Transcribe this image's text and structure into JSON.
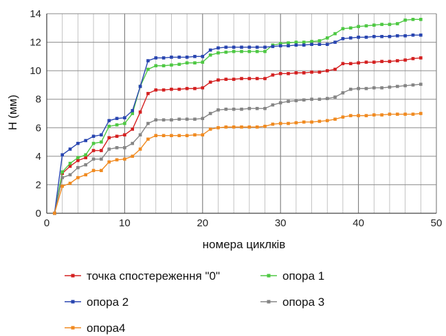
{
  "chart_data": {
    "type": "line",
    "xlabel": "номера циклків",
    "ylabel": "H (мм)",
    "xlim": [
      0,
      50
    ],
    "ylim": [
      0,
      14
    ],
    "x_ticks": [
      0,
      10,
      20,
      30,
      40,
      50
    ],
    "y_ticks": [
      0,
      2,
      4,
      6,
      8,
      10,
      12,
      14
    ],
    "grid": true,
    "legend_position": "bottom",
    "x": [
      1,
      2,
      3,
      4,
      5,
      6,
      7,
      8,
      9,
      10,
      11,
      12,
      13,
      14,
      15,
      16,
      17,
      18,
      19,
      20,
      21,
      22,
      23,
      24,
      25,
      26,
      27,
      28,
      29,
      30,
      31,
      32,
      33,
      34,
      35,
      36,
      37,
      38,
      39,
      40,
      41,
      42,
      43,
      44,
      45,
      46,
      47,
      48
    ],
    "series": [
      {
        "name": "точка спостереження \"0\"",
        "color": "#d42020",
        "values": [
          0,
          2.8,
          3.3,
          3.7,
          3.9,
          4.4,
          4.4,
          5.3,
          5.4,
          5.5,
          5.9,
          7.1,
          8.4,
          8.65,
          8.65,
          8.7,
          8.7,
          8.75,
          8.75,
          8.8,
          9.2,
          9.35,
          9.4,
          9.4,
          9.45,
          9.45,
          9.45,
          9.45,
          9.7,
          9.8,
          9.8,
          9.85,
          9.85,
          9.9,
          9.9,
          10.0,
          10.1,
          10.5,
          10.5,
          10.55,
          10.6,
          10.6,
          10.65,
          10.65,
          10.7,
          10.75,
          10.85,
          10.9
        ]
      },
      {
        "name": "опора 1",
        "color": "#4ec843",
        "values": [
          0,
          2.9,
          3.5,
          3.9,
          4.1,
          4.9,
          5.0,
          6.1,
          6.2,
          6.3,
          7.0,
          8.9,
          10.1,
          10.35,
          10.35,
          10.4,
          10.45,
          10.55,
          10.55,
          10.6,
          11.1,
          11.25,
          11.3,
          11.35,
          11.35,
          11.35,
          11.35,
          11.35,
          11.8,
          11.9,
          11.95,
          12.0,
          12.0,
          12.05,
          12.1,
          12.3,
          12.6,
          12.95,
          13.0,
          13.1,
          13.15,
          13.2,
          13.25,
          13.25,
          13.3,
          13.55,
          13.6,
          13.6
        ]
      },
      {
        "name": "опора 2",
        "color": "#2845b0",
        "values": [
          0,
          4.1,
          4.5,
          4.9,
          5.1,
          5.4,
          5.5,
          6.5,
          6.65,
          6.7,
          7.2,
          8.9,
          10.7,
          10.9,
          10.9,
          10.95,
          10.95,
          10.95,
          11.0,
          11.0,
          11.45,
          11.6,
          11.65,
          11.65,
          11.65,
          11.65,
          11.65,
          11.65,
          11.7,
          11.75,
          11.75,
          11.8,
          11.8,
          11.85,
          11.85,
          11.85,
          12.0,
          12.25,
          12.3,
          12.35,
          12.35,
          12.4,
          12.4,
          12.4,
          12.45,
          12.45,
          12.5,
          12.5
        ]
      },
      {
        "name": "опора 3",
        "color": "#858585",
        "values": [
          0,
          2.5,
          2.7,
          3.2,
          3.4,
          3.8,
          3.8,
          4.5,
          4.6,
          4.6,
          4.9,
          5.5,
          6.3,
          6.55,
          6.55,
          6.55,
          6.6,
          6.6,
          6.6,
          6.65,
          7.0,
          7.25,
          7.3,
          7.3,
          7.3,
          7.35,
          7.35,
          7.35,
          7.6,
          7.75,
          7.85,
          7.9,
          7.95,
          8.0,
          8.0,
          8.05,
          8.15,
          8.45,
          8.7,
          8.75,
          8.75,
          8.8,
          8.8,
          8.85,
          8.9,
          8.95,
          9.0,
          9.05
        ]
      },
      {
        "name": "опора4",
        "color": "#f08a20",
        "values": [
          0,
          1.9,
          2.1,
          2.5,
          2.7,
          3.0,
          3.0,
          3.6,
          3.75,
          3.8,
          4.0,
          4.5,
          5.2,
          5.45,
          5.45,
          5.45,
          5.45,
          5.45,
          5.5,
          5.5,
          5.9,
          6.0,
          6.05,
          6.05,
          6.05,
          6.05,
          6.05,
          6.1,
          6.25,
          6.3,
          6.3,
          6.35,
          6.4,
          6.4,
          6.45,
          6.5,
          6.6,
          6.75,
          6.85,
          6.85,
          6.85,
          6.9,
          6.9,
          6.95,
          6.95,
          6.95,
          6.95,
          7.0
        ]
      }
    ]
  }
}
